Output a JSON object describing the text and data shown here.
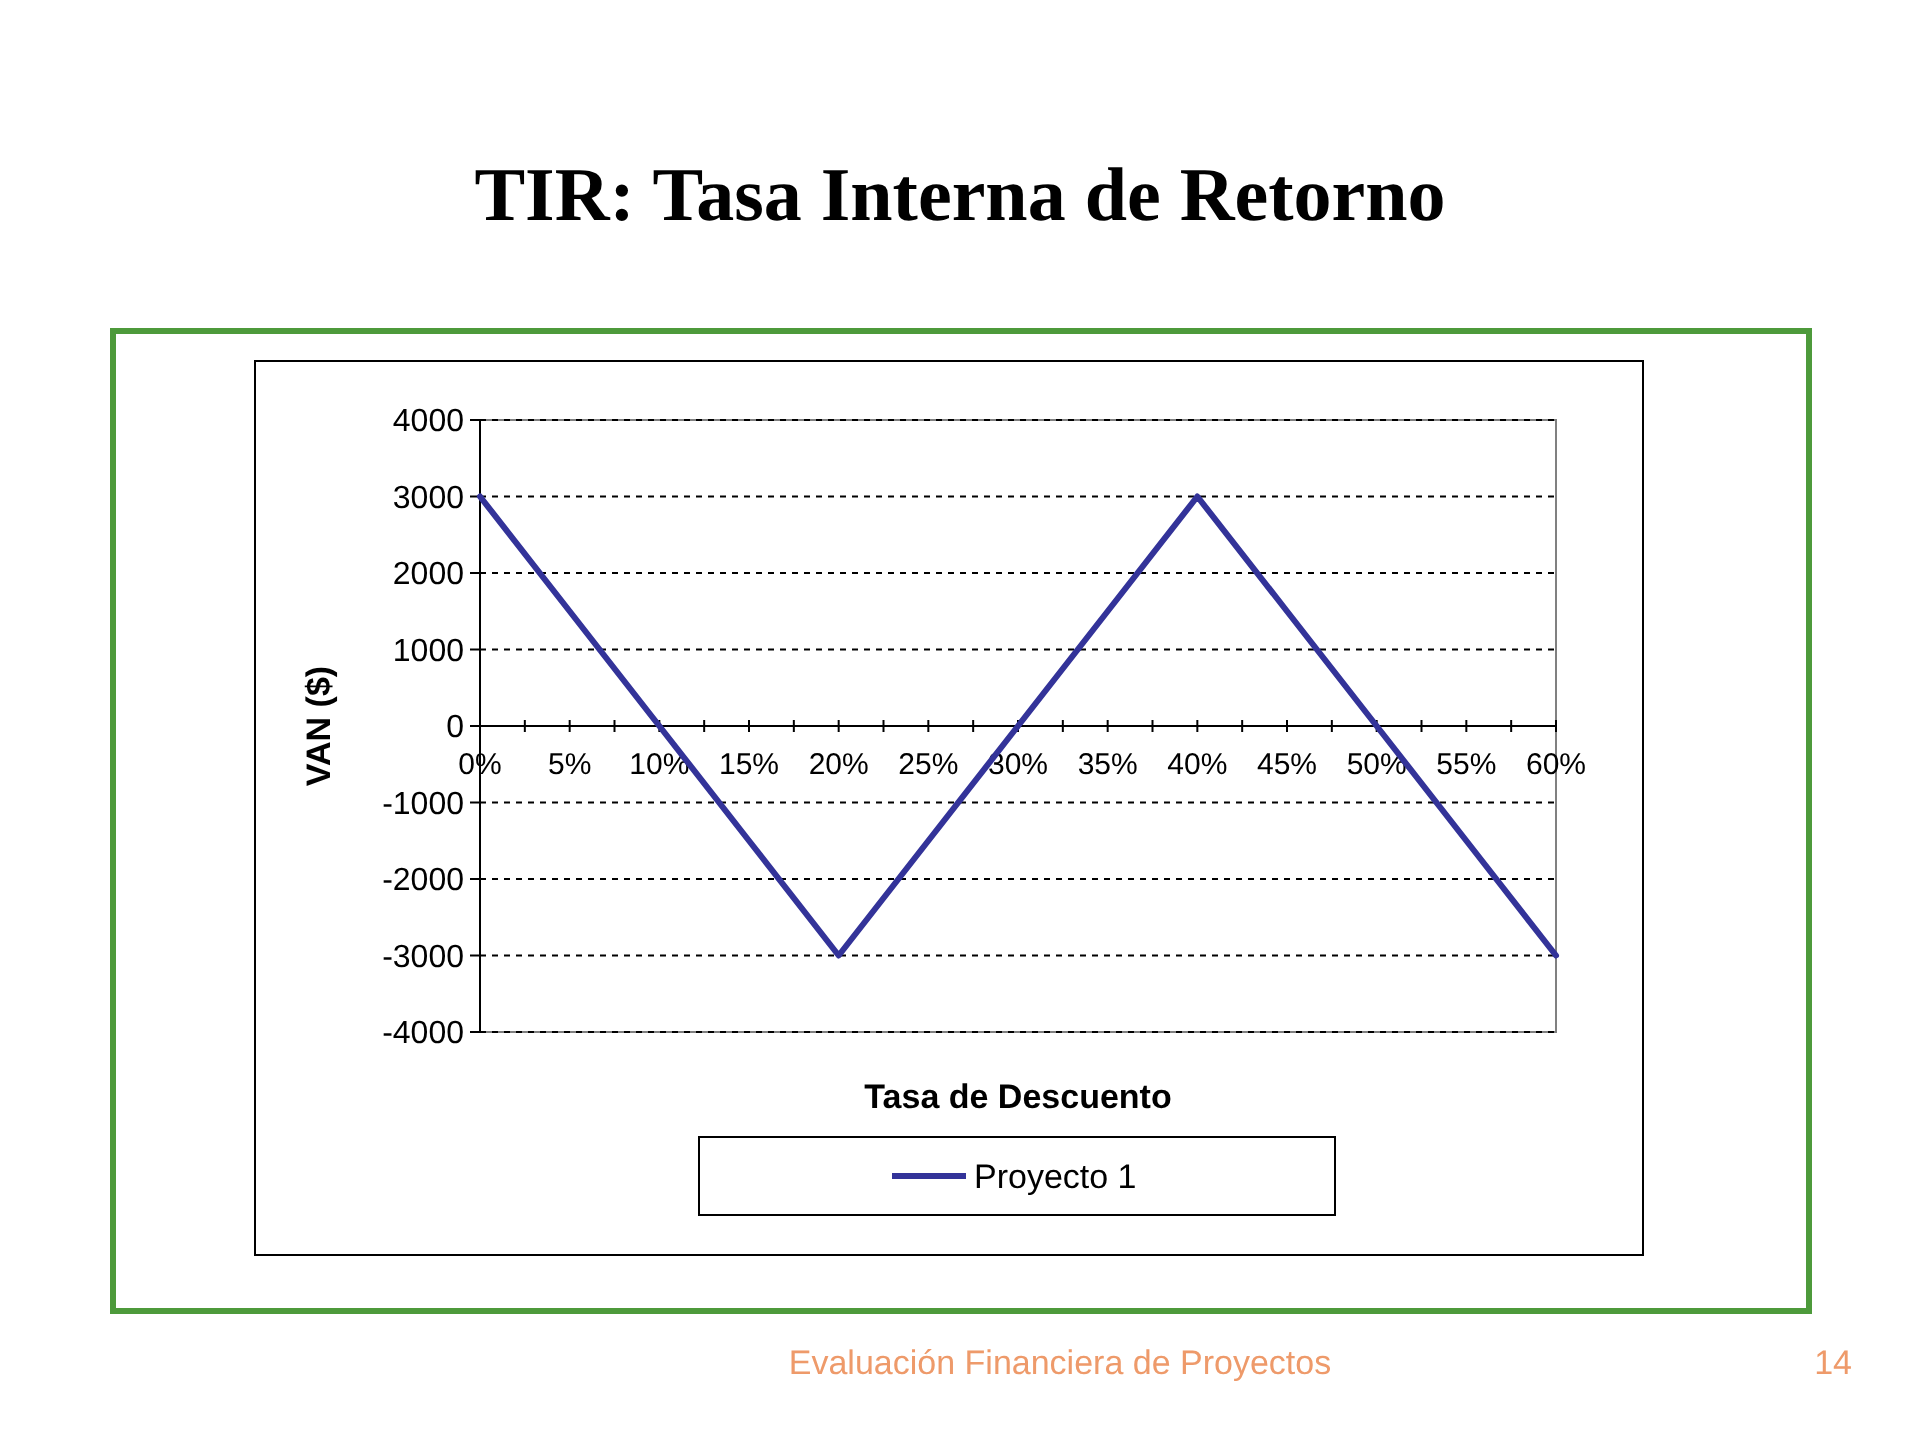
{
  "chart_data": {
    "type": "line",
    "title": "TIR: Tasa Interna de Retorno",
    "xlabel": "Tasa de Descuento",
    "ylabel": "VAN ($)",
    "x": [
      0,
      5,
      10,
      15,
      20,
      25,
      30,
      35,
      40,
      45,
      50,
      55,
      60
    ],
    "series": [
      {
        "name": "Proyecto 1",
        "color": "#333399",
        "values": [
          3000,
          1500,
          0,
          -1500,
          -3000,
          -1500,
          0,
          1500,
          3000,
          1500,
          0,
          -1500,
          -3000
        ]
      }
    ],
    "xlim": [
      0,
      60
    ],
    "xticks": [
      {
        "value": 0,
        "label": "0%"
      },
      {
        "value": 2.5,
        "label": null
      },
      {
        "value": 5,
        "label": "5%"
      },
      {
        "value": 7.5,
        "label": null
      },
      {
        "value": 10,
        "label": "10%"
      },
      {
        "value": 12.5,
        "label": null
      },
      {
        "value": 15,
        "label": "15%"
      },
      {
        "value": 17.5,
        "label": null
      },
      {
        "value": 20,
        "label": "20%"
      },
      {
        "value": 22.5,
        "label": null
      },
      {
        "value": 25,
        "label": "25%"
      },
      {
        "value": 27.5,
        "label": null
      },
      {
        "value": 30,
        "label": "30%"
      },
      {
        "value": 32.5,
        "label": null
      },
      {
        "value": 35,
        "label": "35%"
      },
      {
        "value": 37.5,
        "label": null
      },
      {
        "value": 40,
        "label": "40%"
      },
      {
        "value": 42.5,
        "label": null
      },
      {
        "value": 45,
        "label": "45%"
      },
      {
        "value": 47.5,
        "label": null
      },
      {
        "value": 50,
        "label": "50%"
      },
      {
        "value": 52.5,
        "label": null
      },
      {
        "value": 55,
        "label": "55%"
      },
      {
        "value": 57.5,
        "label": null
      },
      {
        "value": 60,
        "label": "60%"
      }
    ],
    "ylim": [
      -4000,
      4000
    ],
    "yticks": [
      -4000,
      -3000,
      -2000,
      -1000,
      0,
      1000,
      2000,
      3000,
      4000
    ],
    "grid": "y",
    "legend": "bottom",
    "line_style": "solid",
    "annotations": [
      "Evaluación Financiera de Proyectos",
      "14"
    ]
  }
}
